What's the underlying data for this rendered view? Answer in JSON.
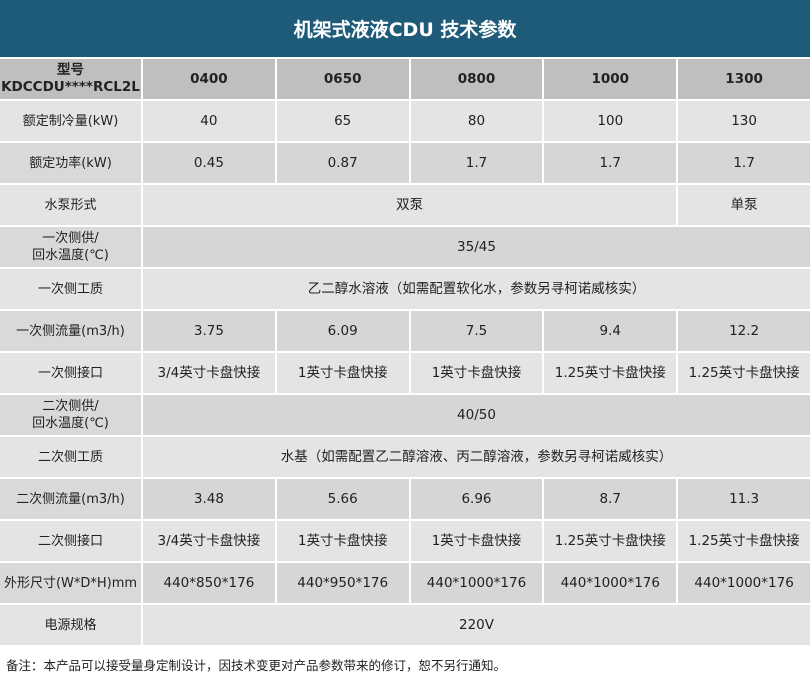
{
  "title": "机架式液液CDU 技术参数",
  "table": {
    "header": {
      "label": "型号\nKDCCDU****RCL2L",
      "columns": [
        "0400",
        "0650",
        "0800",
        "1000",
        "1300"
      ]
    },
    "rows": [
      {
        "label": "额定制冷量(kW)",
        "cells": [
          "40",
          "65",
          "80",
          "100",
          "130"
        ]
      },
      {
        "label": "额定功率(kW)",
        "cells": [
          "0.45",
          "0.87",
          "1.7",
          "1.7",
          "1.7"
        ]
      },
      {
        "label": "水泵形式",
        "cells": [
          "双泵",
          "单泵"
        ]
      },
      {
        "label": "一次侧供/\n回水温度(℃)",
        "cells": [
          "35/45"
        ]
      },
      {
        "label": "一次侧工质",
        "cells": [
          "乙二醇水溶液（如需配置软化水，参数另寻柯诺威核实）"
        ]
      },
      {
        "label": "一次侧流量(m3/h)",
        "cells": [
          "3.75",
          "6.09",
          "7.5",
          "9.4",
          "12.2"
        ]
      },
      {
        "label": "一次侧接口",
        "cells": [
          "3/4英寸卡盘快接",
          "1英寸卡盘快接",
          "1英寸卡盘快接",
          "1.25英寸卡盘快接",
          "1.25英寸卡盘快接"
        ]
      },
      {
        "label": "二次侧供/\n回水温度(℃)",
        "cells": [
          "40/50"
        ]
      },
      {
        "label": "二次侧工质",
        "cells": [
          "水基（如需配置乙二醇溶液、丙二醇溶液，参数另寻柯诺威核实）"
        ]
      },
      {
        "label": "二次侧流量(m3/h)",
        "cells": [
          "3.48",
          "5.66",
          "6.96",
          "8.7",
          "11.3"
        ]
      },
      {
        "label": "二次侧接口",
        "cells": [
          "3/4英寸卡盘快接",
          "1英寸卡盘快接",
          "1英寸卡盘快接",
          "1.25英寸卡盘快接",
          "1.25英寸卡盘快接"
        ]
      },
      {
        "label": "外形尺寸(W*D*H)mm",
        "cells": [
          "440*850*176",
          "440*950*176",
          "440*1000*176",
          "440*1000*176",
          "440*1000*176"
        ]
      },
      {
        "label": "电源规格",
        "cells": [
          "220V"
        ]
      }
    ]
  },
  "note": "备注：本产品可以接受量身定制设计，因技术变更对产品参数带来的修订，恕不另行通知。"
}
